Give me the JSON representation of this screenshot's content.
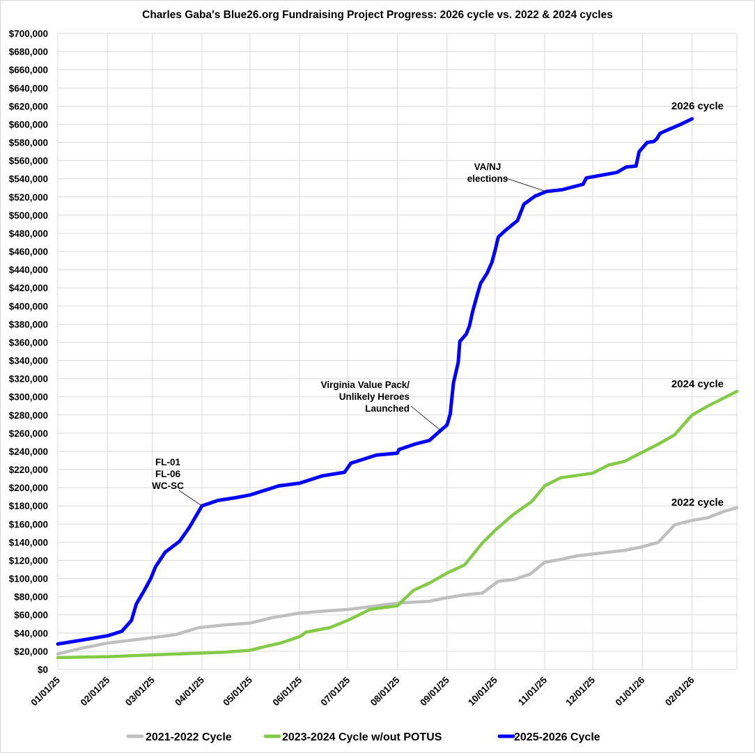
{
  "chart_data": {
    "type": "line",
    "title": "Charles Gaba's Blue26.org Fundraising Project Progress: 2026 cycle vs. 2022 & 2024 cycles",
    "xlabel": "",
    "ylabel": "",
    "xlim": [
      "2025-01-01",
      "2026-03-01"
    ],
    "ylim": [
      0,
      700000
    ],
    "grid": true,
    "legend_position": "bottom",
    "x_tick_labels": [
      "01/01/25",
      "02/01/25",
      "03/01/25",
      "04/01/25",
      "05/01/25",
      "06/01/25",
      "07/01/25",
      "08/01/25",
      "09/01/25",
      "10/01/25",
      "11/01/25",
      "12/01/25",
      "01/01/26",
      "02/01/26"
    ],
    "x_tick_dates": [
      "2025-01-01",
      "2025-02-01",
      "2025-03-01",
      "2025-04-01",
      "2025-05-01",
      "2025-06-01",
      "2025-07-01",
      "2025-08-01",
      "2025-09-01",
      "2025-10-01",
      "2025-11-01",
      "2025-12-01",
      "2026-01-01",
      "2026-02-01"
    ],
    "y_tick_labels": [
      "$0",
      "$20,000",
      "$40,000",
      "$60,000",
      "$80,000",
      "$100,000",
      "$120,000",
      "$140,000",
      "$160,000",
      "$180,000",
      "$200,000",
      "$220,000",
      "$240,000",
      "$260,000",
      "$280,000",
      "$300,000",
      "$320,000",
      "$340,000",
      "$360,000",
      "$380,000",
      "$400,000",
      "$420,000",
      "$440,000",
      "$460,000",
      "$480,000",
      "$500,000",
      "$520,000",
      "$540,000",
      "$560,000",
      "$580,000",
      "$600,000",
      "$620,000",
      "$640,000",
      "$660,000",
      "$680,000",
      "$700,000"
    ],
    "series": [
      {
        "name": "2021-2022 Cycle",
        "color": "#bfbfbf",
        "end_label": "2022 cycle",
        "points": [
          [
            "2025-01-01",
            17000
          ],
          [
            "2025-01-15",
            23000
          ],
          [
            "2025-02-01",
            29000
          ],
          [
            "2025-03-01",
            35000
          ],
          [
            "2025-03-15",
            38000
          ],
          [
            "2025-03-30",
            46000
          ],
          [
            "2025-04-15",
            49000
          ],
          [
            "2025-05-01",
            51000
          ],
          [
            "2025-05-15",
            57000
          ],
          [
            "2025-06-01",
            62000
          ],
          [
            "2025-06-15",
            64000
          ],
          [
            "2025-07-01",
            66000
          ],
          [
            "2025-07-15",
            69000
          ],
          [
            "2025-08-01",
            73000
          ],
          [
            "2025-08-21",
            75000
          ],
          [
            "2025-09-01",
            79000
          ],
          [
            "2025-09-12",
            82000
          ],
          [
            "2025-09-23",
            84000
          ],
          [
            "2025-10-03",
            97000
          ],
          [
            "2025-10-13",
            99000
          ],
          [
            "2025-10-23",
            105000
          ],
          [
            "2025-11-01",
            118000
          ],
          [
            "2025-11-11",
            121000
          ],
          [
            "2025-11-21",
            125000
          ],
          [
            "2025-12-01",
            127000
          ],
          [
            "2025-12-11",
            129000
          ],
          [
            "2025-12-21",
            131000
          ],
          [
            "2026-01-01",
            135000
          ],
          [
            "2026-01-11",
            140000
          ],
          [
            "2026-01-21",
            159000
          ],
          [
            "2026-02-01",
            164000
          ],
          [
            "2026-02-11",
            167000
          ],
          [
            "2026-02-21",
            174000
          ],
          [
            "2026-03-01",
            178000
          ]
        ]
      },
      {
        "name": "2023-2024 Cycle w/out POTUS",
        "color": "#83cb46",
        "end_label": "2024 cycle",
        "points": [
          [
            "2025-01-01",
            13000
          ],
          [
            "2025-02-01",
            14000
          ],
          [
            "2025-03-01",
            16000
          ],
          [
            "2025-04-01",
            18000
          ],
          [
            "2025-04-15",
            19000
          ],
          [
            "2025-05-01",
            21000
          ],
          [
            "2025-05-10",
            25000
          ],
          [
            "2025-05-20",
            29000
          ],
          [
            "2025-06-01",
            36000
          ],
          [
            "2025-06-05",
            41000
          ],
          [
            "2025-06-20",
            46000
          ],
          [
            "2025-07-01",
            54000
          ],
          [
            "2025-07-15",
            66000
          ],
          [
            "2025-08-01",
            70000
          ],
          [
            "2025-08-11",
            87000
          ],
          [
            "2025-08-21",
            95000
          ],
          [
            "2025-09-01",
            106000
          ],
          [
            "2025-09-12",
            115000
          ],
          [
            "2025-09-23",
            139000
          ],
          [
            "2025-10-01",
            153000
          ],
          [
            "2025-10-12",
            170000
          ],
          [
            "2025-10-24",
            185000
          ],
          [
            "2025-11-01",
            202000
          ],
          [
            "2025-11-11",
            211000
          ],
          [
            "2025-12-01",
            216000
          ],
          [
            "2025-12-11",
            225000
          ],
          [
            "2025-12-21",
            229000
          ],
          [
            "2026-01-01",
            239000
          ],
          [
            "2026-01-11",
            248000
          ],
          [
            "2026-01-21",
            258000
          ],
          [
            "2026-02-01",
            280000
          ],
          [
            "2026-02-11",
            290000
          ],
          [
            "2026-03-01",
            306000
          ]
        ]
      },
      {
        "name": "2025-2026 Cycle",
        "color": "#0000ff",
        "end_label": "2026 cycle",
        "points": [
          [
            "2025-01-01",
            28000
          ],
          [
            "2025-01-15",
            32000
          ],
          [
            "2025-02-01",
            37000
          ],
          [
            "2025-02-10",
            42000
          ],
          [
            "2025-02-16",
            54000
          ],
          [
            "2025-02-19",
            72000
          ],
          [
            "2025-02-24",
            87000
          ],
          [
            "2025-02-28",
            100000
          ],
          [
            "2025-03-03",
            113000
          ],
          [
            "2025-03-09",
            129000
          ],
          [
            "2025-03-18",
            141000
          ],
          [
            "2025-03-24",
            156000
          ],
          [
            "2025-04-01",
            180000
          ],
          [
            "2025-04-11",
            186000
          ],
          [
            "2025-04-22",
            189000
          ],
          [
            "2025-05-01",
            192000
          ],
          [
            "2025-05-19",
            202000
          ],
          [
            "2025-06-01",
            205000
          ],
          [
            "2025-06-15",
            213000
          ],
          [
            "2025-06-29",
            217000
          ],
          [
            "2025-07-03",
            227000
          ],
          [
            "2025-07-19",
            236000
          ],
          [
            "2025-08-01",
            238000
          ],
          [
            "2025-08-02",
            242000
          ],
          [
            "2025-08-12",
            248000
          ],
          [
            "2025-08-21",
            252000
          ],
          [
            "2025-08-28",
            263000
          ],
          [
            "2025-09-01",
            269000
          ],
          [
            "2025-09-03",
            281000
          ],
          [
            "2025-09-05",
            315000
          ],
          [
            "2025-09-08",
            338000
          ],
          [
            "2025-09-09",
            361000
          ],
          [
            "2025-09-13",
            369000
          ],
          [
            "2025-09-15",
            378000
          ],
          [
            "2025-09-17",
            394000
          ],
          [
            "2025-09-20",
            413000
          ],
          [
            "2025-09-22",
            425000
          ],
          [
            "2025-09-26",
            436000
          ],
          [
            "2025-09-29",
            448000
          ],
          [
            "2025-10-01",
            461000
          ],
          [
            "2025-10-03",
            476000
          ],
          [
            "2025-10-08",
            484000
          ],
          [
            "2025-10-15",
            494000
          ],
          [
            "2025-10-19",
            512000
          ],
          [
            "2025-10-26",
            521000
          ],
          [
            "2025-11-02",
            526000
          ],
          [
            "2025-11-12",
            528000
          ],
          [
            "2025-11-25",
            534000
          ],
          [
            "2025-11-27",
            541000
          ],
          [
            "2025-12-16",
            547000
          ],
          [
            "2025-12-22",
            553000
          ],
          [
            "2025-12-28",
            554000
          ],
          [
            "2025-12-30",
            570000
          ],
          [
            "2026-01-04",
            580000
          ],
          [
            "2026-01-08",
            581000
          ],
          [
            "2026-01-10",
            584000
          ],
          [
            "2026-01-12",
            590000
          ],
          [
            "2026-01-17",
            594000
          ],
          [
            "2026-01-25",
            600000
          ],
          [
            "2026-02-01",
            606000
          ]
        ]
      }
    ],
    "annotations": [
      {
        "lines": [
          "FL-01",
          "FL-06",
          "WC-SC"
        ],
        "date": "2025-04-01",
        "value": 180000
      },
      {
        "lines": [
          "Virginia Value Pack/",
          "Unlikely Heroes",
          "Launched"
        ],
        "date": "2025-08-28",
        "value": 263000
      },
      {
        "lines": [
          "VA/NJ",
          "elections"
        ],
        "date": "2025-11-02",
        "value": 526000
      }
    ]
  }
}
